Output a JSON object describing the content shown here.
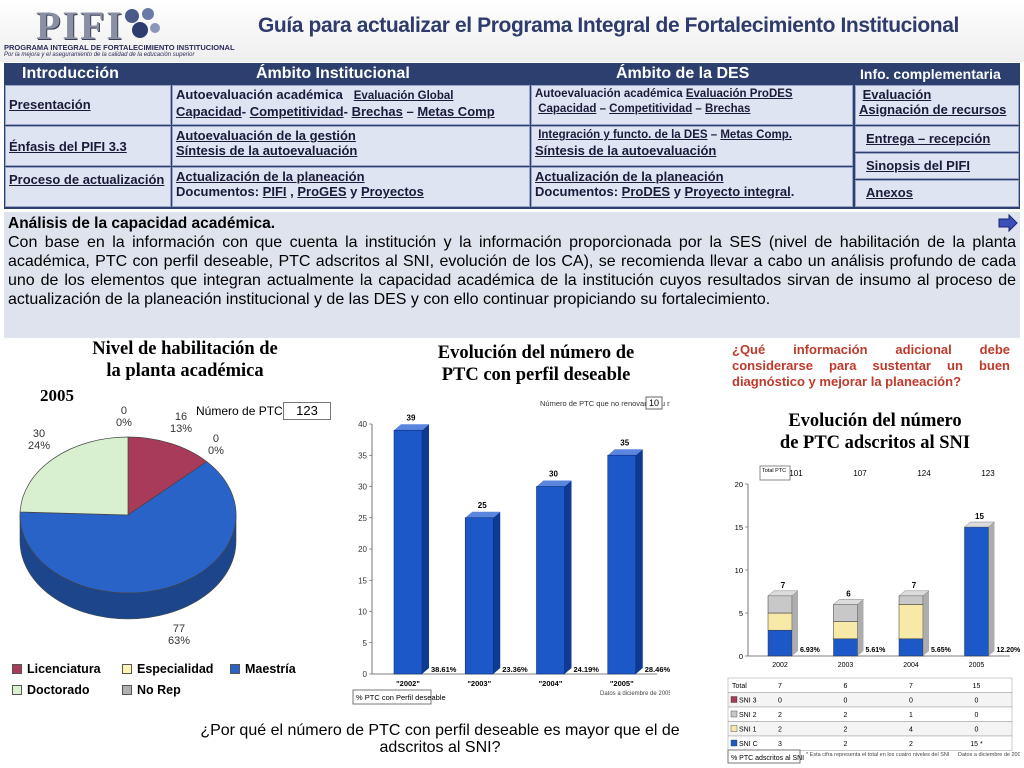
{
  "header": {
    "logo_word": "PIFI",
    "logo_line1": "PROGRAMA INTEGRAL DE FORTALECIMIENTO INSTITUCIONAL",
    "logo_line2": "Por la mejora y el aseguramiento de la calidad de la educación superior",
    "title": "Guía para actualizar el Programa Integral de Fortalecimiento Institucional"
  },
  "nav": {
    "col1_head": "Introducción",
    "col2_head": "Ámbito Institucional",
    "col3_head": "Ámbito de la DES",
    "col4_head": "Info. complementaria",
    "col1": [
      "Presentación",
      "Énfasis del PIFI 3.3",
      "Proceso de actualización"
    ],
    "inst_r1_a": "Autoevaluación académica",
    "inst_r1_b": "Evaluación Global",
    "inst_r1_c": "Capacidad",
    "inst_r1_d": "- ",
    "inst_r1_e": "Competitividad",
    "inst_r1_f": "- ",
    "inst_r1_g": "Brechas",
    "inst_r1_h": " – ",
    "inst_r1_i": "Metas Comp",
    "inst_r2_a": "Autoevaluación de la gestión",
    "inst_r2_b": "Síntesis de la autoevaluación",
    "inst_r3_a": "Actualización de la planeación",
    "inst_r3_b": "Documentos: ",
    "inst_r3_c": "PIFI",
    "inst_r3_d": " , ",
    "inst_r3_e": "ProGES",
    "inst_r3_f": " y ",
    "inst_r3_g": "Proyectos",
    "des_r1_a": "Autoevaluación académica",
    "des_r1_b": "Evaluación ProDES",
    "des_r1_c": "Capacidad",
    "des_r1_d": " – ",
    "des_r1_e": "Competitividad",
    "des_r1_f": " – ",
    "des_r1_g": "Brechas",
    "des_r2_a": "Integración y functo. de la DES",
    "des_r2_b": " – ",
    "des_r2_c": "Metas Comp.",
    "des_r2_d": "Síntesis de la autoevaluación",
    "des_r3_a": "Actualización de la planeación",
    "des_r3_b": "Documentos: ",
    "des_r3_c": "ProDES",
    "des_r3_d": " y ",
    "des_r3_e": "Proyecto integral",
    "des_r3_f": ".",
    "info": [
      "Evaluación",
      "Asignación de recursos",
      "Entrega – recepción",
      "Sinopsis del PIFI",
      "Anexos"
    ]
  },
  "analysis": {
    "title": "Análisis de la capacidad académica.",
    "body": "Con base en la información con que cuenta la institución y la información proporcionada por la SES (nivel de habilitación de la planta académica, PTC con perfil deseable, PTC adscritos al SNI, evolución de los CA), se recomienda llevar a cabo un análisis profundo de cada uno de los elementos que integran actualmente la capacidad académica de la institución cuyos resultados sirvan de insumo al proceso de actualización de la planeación institucional y de las DES y con ello continuar propiciando su fortalecimiento."
  },
  "pie_section": {
    "title_line1": "Nivel de habilitación de",
    "title_line2": "la planta académica",
    "year": "2005",
    "count_label": "Número de PTC",
    "count_value": "123",
    "labels": [
      {
        "v": "0",
        "p": "0%"
      },
      {
        "v": "16",
        "p": "13%"
      },
      {
        "v": "0",
        "p": "0%"
      },
      {
        "v": "30",
        "p": "24%"
      },
      {
        "v": "77",
        "p": "63%"
      }
    ],
    "legend": [
      "Licenciatura",
      "Especialidad",
      "Maestría",
      "Doctorado",
      "No Rep"
    ]
  },
  "bar_section": {
    "title_line1": "Evolución del número de",
    "title_line2": "PTC con perfil deseable",
    "note_label": "Número de PTC que no renovaron su registro",
    "note_value": "10",
    "footer_label": "% PTC con Perfil deseable",
    "source": "Datos a diciembre de 2005"
  },
  "sni_section": {
    "question": "¿Qué información adicional debe considerarse para sustentar un buen diagnóstico y mejorar la planeación?",
    "title_line1": "Evolución del número",
    "title_line2": "de PTC adscritos al SNI",
    "total_label": "Total PTC",
    "totals": [
      "101",
      "107",
      "124",
      "123"
    ],
    "footer_label": "% PTC adscritos al SNI",
    "footnote": "* Esta cifra representa el total en los cuatro niveles del SNI",
    "source": "Datos a diciembre de 2005",
    "table_rows": [
      {
        "label": "Total",
        "values": [
          "7",
          "6",
          "7",
          "15"
        ]
      },
      {
        "label": "SNI 3",
        "values": [
          "0",
          "0",
          "0",
          "0"
        ]
      },
      {
        "label": "SNI 2",
        "values": [
          "2",
          "2",
          "1",
          "0"
        ]
      },
      {
        "label": "SNI 1",
        "values": [
          "2",
          "2",
          "4",
          "0"
        ]
      },
      {
        "label": "SNI C",
        "values": [
          "3",
          "2",
          "2",
          "15 *"
        ]
      }
    ]
  },
  "bottom_question": "¿Por qué el número de PTC con perfil deseable es mayor que el de adscritos al SNI?",
  "chart_data": [
    {
      "type": "pie",
      "title": "Nivel de habilitación de la planta académica",
      "subtitle": "2005",
      "categories": [
        "Licenciatura",
        "Especialidad",
        "Maestría",
        "Doctorado",
        "No Rep"
      ],
      "values": [
        16,
        0,
        77,
        30,
        0
      ],
      "percents": [
        "13%",
        "0%",
        "63%",
        "24%",
        "0%"
      ],
      "colors": [
        "#a83a5a",
        "#fff4b0",
        "#2a63c8",
        "#d8f0d0",
        "#b0b0b0"
      ],
      "legend": "bottom"
    },
    {
      "type": "bar",
      "title": "Evolución del número de PTC con perfil deseable",
      "categories": [
        "\"2002\"",
        "\"2003\"",
        "\"2004\"",
        "\"2005\""
      ],
      "values": [
        39,
        25,
        30,
        35
      ],
      "percent_labels": [
        "38.61%",
        "23.36%",
        "24.19%",
        "28.46%"
      ],
      "ylim": [
        0,
        40
      ],
      "yticks": [
        0,
        5,
        10,
        15,
        20,
        25,
        30,
        35,
        40
      ],
      "color": "#1d58c8"
    },
    {
      "type": "bar",
      "title": "Evolución del número de PTC adscritos al SNI",
      "categories": [
        "2002",
        "2003",
        "2004",
        "2005"
      ],
      "series": [
        {
          "name": "SNI C",
          "values": [
            3,
            2,
            2,
            15
          ],
          "color": "#1d58c8"
        },
        {
          "name": "SNI 1",
          "values": [
            2,
            2,
            4,
            0
          ],
          "color": "#f7e9a8"
        },
        {
          "name": "SNI 2",
          "values": [
            2,
            2,
            1,
            0
          ],
          "color": "#c8c8c8"
        },
        {
          "name": "SNI 3",
          "values": [
            0,
            0,
            0,
            0
          ],
          "color": "#a83a5a"
        }
      ],
      "totals": [
        7,
        6,
        7,
        15
      ],
      "percent_labels": [
        "6.93%",
        "5.61%",
        "5.65%",
        "12.20%"
      ],
      "ylim": [
        0,
        20
      ],
      "yticks": [
        0,
        5,
        10,
        15,
        20
      ]
    }
  ]
}
